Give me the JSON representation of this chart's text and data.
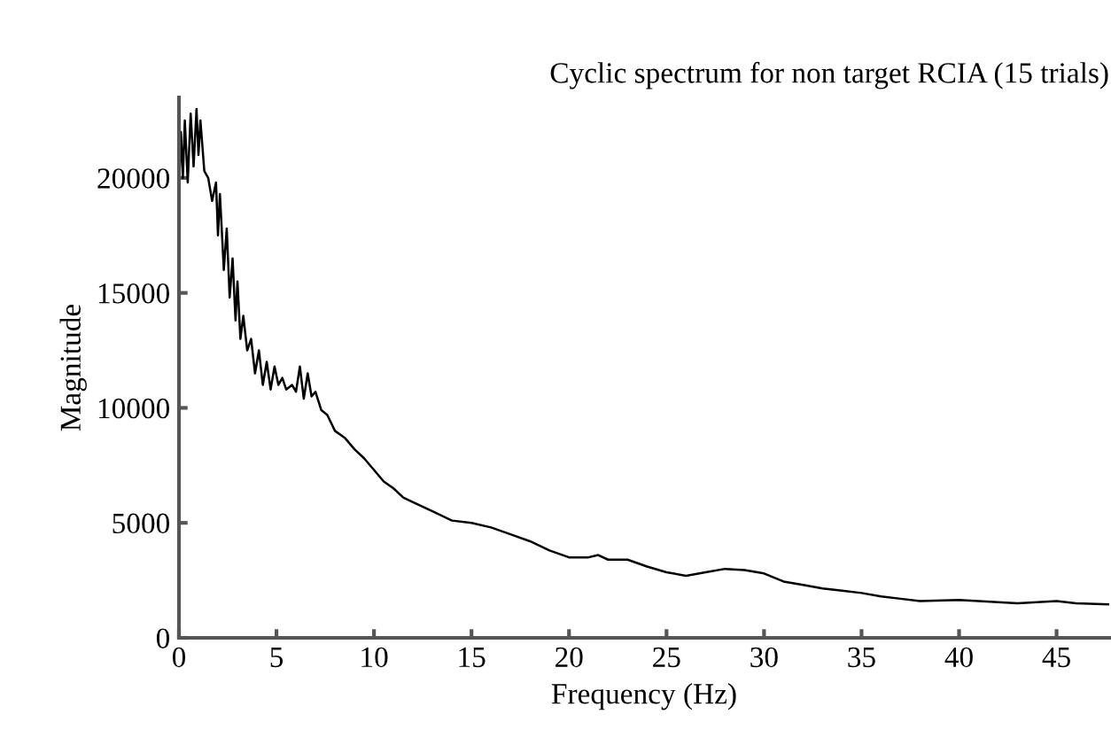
{
  "chart_data": {
    "type": "line",
    "title": "Cyclic spectrum for non target RCIA (15 trials)",
    "xlabel": "Frequency (Hz)",
    "ylabel": "Magnitude",
    "xlim": [
      0,
      47.7
    ],
    "xticks": [
      0,
      5,
      10,
      15,
      20,
      25,
      30,
      35,
      40,
      45
    ],
    "ylim": [
      0,
      23500
    ],
    "yticks": [
      0,
      5000,
      10000,
      15000,
      20000
    ],
    "grid": false,
    "legend": false,
    "marker": "none",
    "line_style": "solid",
    "series": [
      {
        "color": "#000000",
        "x": [
          0,
          0.1,
          0.2,
          0.3,
          0.45,
          0.6,
          0.75,
          0.9,
          1.0,
          1.1,
          1.3,
          1.5,
          1.7,
          1.9,
          2.0,
          2.1,
          2.3,
          2.45,
          2.6,
          2.75,
          2.9,
          3.0,
          3.15,
          3.3,
          3.5,
          3.7,
          3.9,
          4.1,
          4.3,
          4.5,
          4.7,
          4.9,
          5.1,
          5.3,
          5.5,
          5.8,
          6.0,
          6.2,
          6.4,
          6.6,
          6.8,
          7.0,
          7.3,
          7.6,
          8.0,
          8.5,
          9,
          9.5,
          10,
          10.5,
          11,
          11.5,
          12,
          13,
          14,
          15,
          16,
          17,
          18,
          19,
          20,
          21,
          21.5,
          22,
          23,
          24,
          25,
          26,
          27,
          28,
          29,
          30,
          31,
          32,
          33,
          34,
          35,
          36,
          37,
          38,
          40,
          42,
          43,
          45,
          46,
          47.7
        ],
        "values": [
          19500,
          22000,
          20000,
          22500,
          19800,
          22800,
          20500,
          23000,
          21000,
          22500,
          20300,
          20000,
          19000,
          19800,
          17500,
          19300,
          16000,
          17800,
          14800,
          16500,
          13800,
          15500,
          13000,
          14000,
          12500,
          13000,
          11500,
          12500,
          11000,
          12000,
          10800,
          11800,
          11000,
          11300,
          10800,
          11000,
          10700,
          11800,
          10400,
          11500,
          10500,
          10700,
          9900,
          9700,
          9000,
          8700,
          8200,
          7800,
          7300,
          6800,
          6500,
          6100,
          5900,
          5500,
          5100,
          5000,
          4800,
          4500,
          4200,
          3800,
          3500,
          3500,
          3600,
          3400,
          3400,
          3100,
          2850,
          2700,
          2850,
          3000,
          2950,
          2800,
          2450,
          2300,
          2150,
          2050,
          1950,
          1800,
          1700,
          1600,
          1650,
          1550,
          1500,
          1600,
          1500,
          1450
        ]
      }
    ]
  }
}
